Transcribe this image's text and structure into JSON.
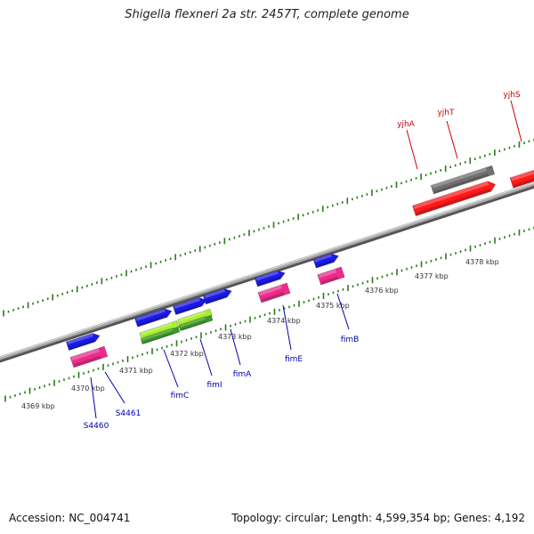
{
  "title": "Shigella flexneri 2a str. 2457T, complete genome",
  "footer": {
    "accession": "Accession: NC_004741",
    "stats": "Topology: circular; Length: 4,599,354 bp; Genes: 4,192"
  },
  "colors": {
    "backbone": "#8a8a8a",
    "tick": "#2a7a1a",
    "gene_forward": "#1a1ae6",
    "gene_reverse": "#ee2b8a",
    "gene_red": "#ff1a1a",
    "gene_gray": "#707070",
    "gene_lime": "#a8f030",
    "gene_green": "#3a9a2a",
    "label_blue": "#0000aa",
    "label_red": "#cc0000"
  },
  "scale": {
    "unit": "kbp",
    "labels": [
      "4369 kbp",
      "4370 kbp",
      "4371 kbp",
      "4372 kbp",
      "4373 kbp",
      "4374 kbp",
      "4375 kbp",
      "4376 kbp",
      "4377 kbp",
      "4378 kbp"
    ]
  },
  "genes": [
    {
      "name": "S4460",
      "label_color": "blue"
    },
    {
      "name": "S4461",
      "label_color": "blue"
    },
    {
      "name": "fimC",
      "label_color": "blue"
    },
    {
      "name": "fimI",
      "label_color": "blue"
    },
    {
      "name": "fimA",
      "label_color": "blue"
    },
    {
      "name": "fimE",
      "label_color": "blue"
    },
    {
      "name": "fimB",
      "label_color": "blue"
    },
    {
      "name": "yjhA",
      "label_color": "red"
    },
    {
      "name": "yjhT",
      "label_color": "red"
    },
    {
      "name": "yjhS",
      "label_color": "red"
    }
  ]
}
